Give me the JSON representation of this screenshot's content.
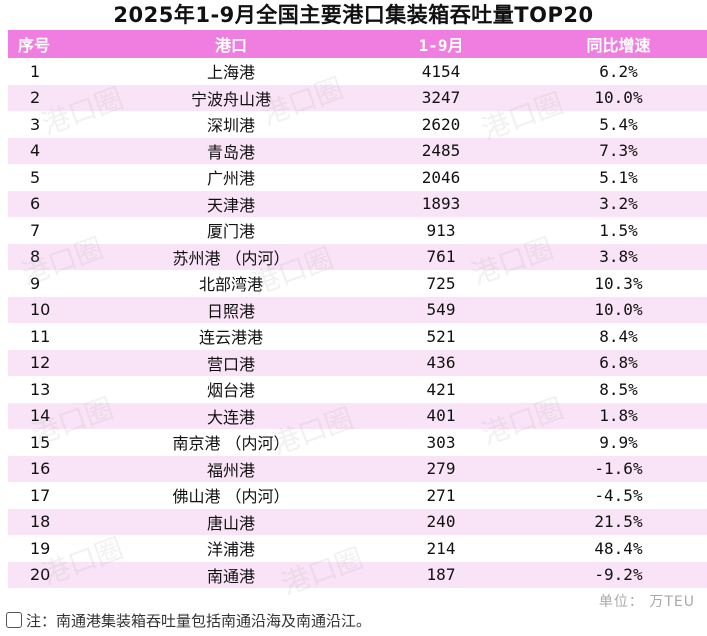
{
  "title": "2025年1-9月全国主要港口集装箱吞吐量TOP20",
  "columns": [
    "序号",
    "港口",
    "1-9月",
    "同比增速"
  ],
  "rows": [
    {
      "rank": "1",
      "port": "上海港",
      "volume": "4154",
      "growth": "6.2%",
      "trend": "up"
    },
    {
      "rank": "2",
      "port": "宁波舟山港",
      "volume": "3247",
      "growth": "10.0%",
      "trend": "up"
    },
    {
      "rank": "3",
      "port": "深圳港",
      "volume": "2620",
      "growth": "5.4%",
      "trend": "up"
    },
    {
      "rank": "4",
      "port": "青岛港",
      "volume": "2485",
      "growth": "7.3%",
      "trend": "up"
    },
    {
      "rank": "5",
      "port": "广州港",
      "volume": "2046",
      "growth": "5.1%",
      "trend": "up"
    },
    {
      "rank": "6",
      "port": "天津港",
      "volume": "1893",
      "growth": "3.2%",
      "trend": "up"
    },
    {
      "rank": "7",
      "port": "厦门港",
      "volume": "913",
      "growth": "1.5%",
      "trend": "up"
    },
    {
      "rank": "8",
      "port": "苏州港 （内河）",
      "volume": "761",
      "growth": "3.8%",
      "trend": "up"
    },
    {
      "rank": "9",
      "port": "北部湾港",
      "volume": "725",
      "growth": "10.3%",
      "trend": "up"
    },
    {
      "rank": "10",
      "port": "日照港",
      "volume": "549",
      "growth": "10.0%",
      "trend": "up"
    },
    {
      "rank": "11",
      "port": "连云港港",
      "volume": "521",
      "growth": "8.4%",
      "trend": "up"
    },
    {
      "rank": "12",
      "port": "营口港",
      "volume": "436",
      "growth": "6.8%",
      "trend": "up"
    },
    {
      "rank": "13",
      "port": "烟台港",
      "volume": "421",
      "growth": "8.5%",
      "trend": "up"
    },
    {
      "rank": "14",
      "port": "大连港",
      "volume": "401",
      "growth": "1.8%",
      "trend": "up"
    },
    {
      "rank": "15",
      "port": "南京港 （内河）",
      "volume": "303",
      "growth": "9.9%",
      "trend": "up"
    },
    {
      "rank": "16",
      "port": "福州港",
      "volume": "279",
      "growth": "-1.6%",
      "trend": "down"
    },
    {
      "rank": "17",
      "port": "佛山港 （内河）",
      "volume": "271",
      "growth": "-4.5%",
      "trend": "down"
    },
    {
      "rank": "18",
      "port": "唐山港",
      "volume": "240",
      "growth": "21.5%",
      "trend": "up"
    },
    {
      "rank": "19",
      "port": "洋浦港",
      "volume": "214",
      "growth": "48.4%",
      "trend": "up"
    },
    {
      "rank": "20",
      "port": "南通港",
      "volume": "187",
      "growth": "-9.2%",
      "trend": "down"
    }
  ],
  "unit": "单位： 万TEU",
  "footnote": "注：南通港集装箱吞吐量包括南通沿海及南通沿江。",
  "watermark": "港口圈",
  "colors": {
    "header_bg": "#f07ee0",
    "stripe": "#f9e3f6",
    "positive": "#d62a2a",
    "negative": "#1f9a3e"
  }
}
